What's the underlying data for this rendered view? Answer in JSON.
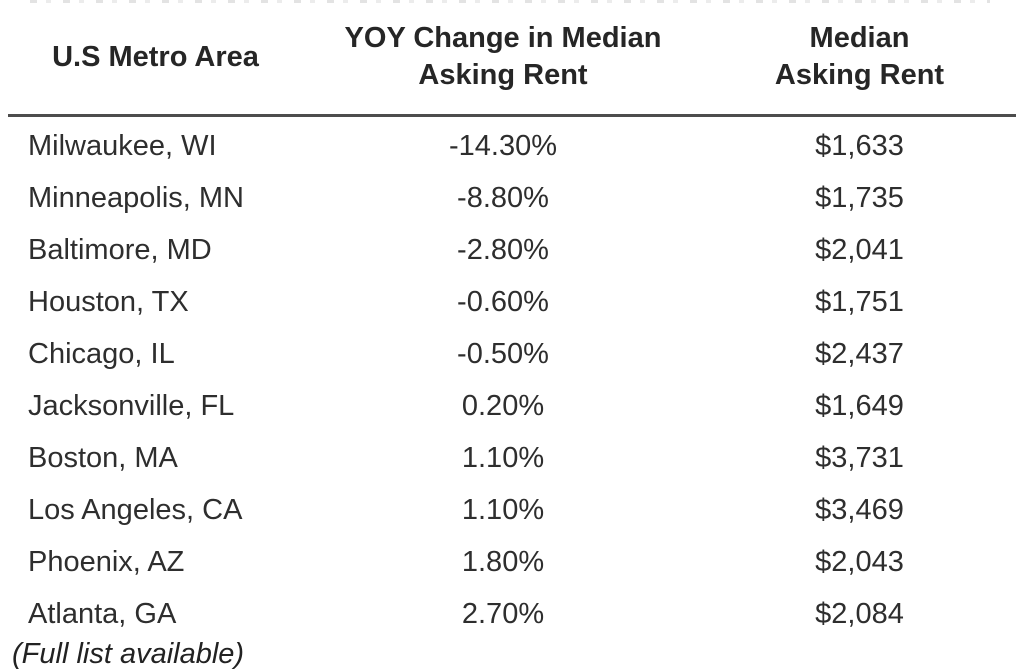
{
  "page": {
    "background": "#ffffff",
    "text_color": "#2e2e2e",
    "rule_color": "#4d4d4d"
  },
  "table": {
    "headers": {
      "metro": "U.S Metro Area",
      "yoy": "YOY Change in Median Asking Rent",
      "rent": "Median Asking Rent"
    },
    "rows": [
      {
        "metro": "Milwaukee, WI",
        "yoy": "-14.30%",
        "rent": "$1,633"
      },
      {
        "metro": "Minneapolis, MN",
        "yoy": "-8.80%",
        "rent": "$1,735"
      },
      {
        "metro": "Baltimore, MD",
        "yoy": "-2.80%",
        "rent": "$2,041"
      },
      {
        "metro": "Houston, TX",
        "yoy": "-0.60%",
        "rent": "$1,751"
      },
      {
        "metro": "Chicago, IL",
        "yoy": "-0.50%",
        "rent": "$2,437"
      },
      {
        "metro": "Jacksonville, FL",
        "yoy": "0.20%",
        "rent": "$1,649"
      },
      {
        "metro": "Boston, MA",
        "yoy": "1.10%",
        "rent": "$3,731"
      },
      {
        "metro": "Los Angeles, CA",
        "yoy": "1.10%",
        "rent": "$3,469"
      },
      {
        "metro": "Phoenix, AZ",
        "yoy": "1.80%",
        "rent": "$2,043"
      },
      {
        "metro": "Atlanta, GA",
        "yoy": "2.70%",
        "rent": "$2,084"
      }
    ],
    "footnote": "(Full list available)"
  },
  "chart_data": {
    "type": "table",
    "title": "",
    "columns": [
      "U.S Metro Area",
      "YOY Change in Median Asking Rent",
      "Median Asking Rent"
    ],
    "rows": [
      [
        "Milwaukee, WI",
        "-14.30%",
        "$1,633"
      ],
      [
        "Minneapolis, MN",
        "-8.80%",
        "$1,735"
      ],
      [
        "Baltimore, MD",
        "-2.80%",
        "$2,041"
      ],
      [
        "Houston, TX",
        "-0.60%",
        "$1,751"
      ],
      [
        "Chicago, IL",
        "-0.50%",
        "$2,437"
      ],
      [
        "Jacksonville, FL",
        "0.20%",
        "$1,649"
      ],
      [
        "Boston, MA",
        "1.10%",
        "$3,731"
      ],
      [
        "Los Angeles, CA",
        "1.10%",
        "$3,469"
      ],
      [
        "Phoenix, AZ",
        "1.80%",
        "$2,043"
      ],
      [
        "Atlanta, GA",
        "2.70%",
        "$2,084"
      ]
    ],
    "yoy_change_pct": [
      -14.3,
      -8.8,
      -2.8,
      -0.6,
      -0.5,
      0.2,
      1.1,
      1.1,
      1.8,
      2.7
    ],
    "median_asking_rent_usd": [
      1633,
      1735,
      2041,
      1751,
      2437,
      1649,
      3731,
      3469,
      2043,
      2084
    ],
    "annotations": [
      "(Full list available)"
    ],
    "sort_order": "yoy_change_pct ascending"
  }
}
